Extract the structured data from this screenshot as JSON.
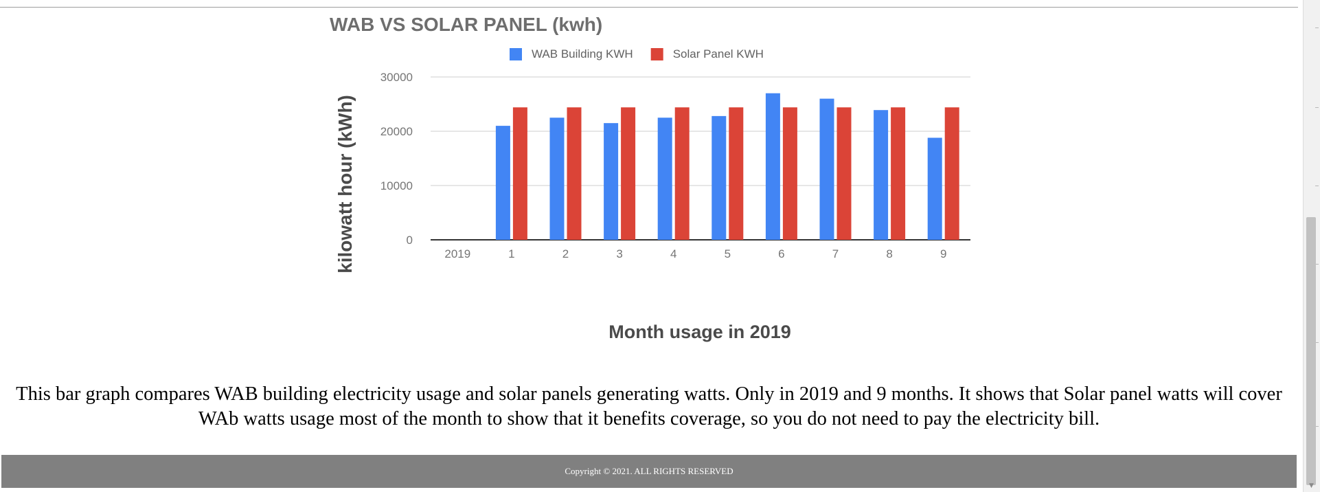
{
  "chart_data": {
    "type": "bar",
    "title": "WAB VS SOLAR PANEL (kwh)",
    "xlabel": "Month usage in 2019",
    "ylabel": "kilowatt hour (kWh)",
    "ylim": [
      0,
      30000
    ],
    "yticks": [
      "30000",
      "20000",
      "10000",
      "0"
    ],
    "ytick_values": [
      30000,
      20000,
      10000,
      0
    ],
    "categories": [
      "2019",
      "1",
      "2",
      "3",
      "4",
      "5",
      "6",
      "7",
      "8",
      "9"
    ],
    "series": [
      {
        "name": "WAB Building KWH",
        "color": "#4285f4",
        "values": [
          0,
          21000,
          22500,
          21500,
          22500,
          22800,
          27000,
          26000,
          23900,
          18800
        ]
      },
      {
        "name": "Solar Panel KWH",
        "color": "#db4437",
        "values": [
          0,
          24400,
          24400,
          24400,
          24400,
          24400,
          24400,
          24400,
          24400,
          24400
        ]
      }
    ],
    "grid": true,
    "legend": "top"
  },
  "description": "This bar graph compares WAB building electricity usage and solar panels generating watts. Only in 2019 and 9 months. It shows that Solar panel watts will cover WAb watts usage most of the month to show that it benefits coverage, so you do not need to pay the electricity bill.",
  "footer": {
    "copyright": "Copyright © 2021. ALL RIGHTS RESERVED"
  }
}
